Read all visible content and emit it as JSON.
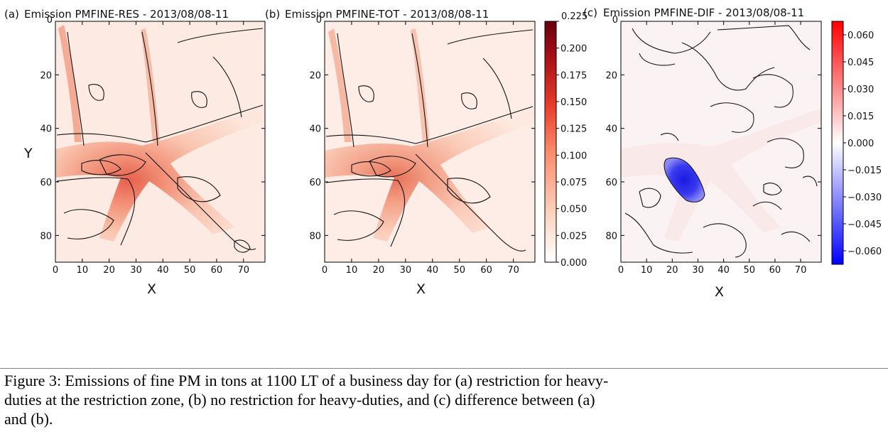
{
  "chart_data": [
    {
      "type": "heatmap",
      "panel": "(a)",
      "title": "Emission PMFINE-RES - 2013/08/08-11",
      "xlabel": "X",
      "ylabel": "Y",
      "xlim": [
        0,
        78
      ],
      "ylim": [
        0,
        90
      ],
      "y_inverted": true,
      "x_ticks": [
        0,
        10,
        20,
        30,
        40,
        50,
        60,
        70
      ],
      "y_ticks": [
        20,
        40,
        60,
        80
      ],
      "colorbar": "shared-with-b",
      "contours": true
    },
    {
      "type": "heatmap",
      "panel": "(b)",
      "title": "Emission PMFINE-TOT - 2013/08/08-11",
      "xlabel": "X",
      "xlim": [
        0,
        78
      ],
      "ylim": [
        0,
        90
      ],
      "y_inverted": true,
      "x_ticks": [
        0,
        10,
        20,
        30,
        40,
        50,
        60,
        70
      ],
      "y_ticks": [
        20,
        40,
        60,
        80
      ],
      "colorbar": {
        "ticks": [
          "0.225",
          "0.200",
          "0.175",
          "0.150",
          "0.125",
          "0.100",
          "0.075",
          "0.050",
          "0.025",
          "0.000"
        ],
        "range": [
          0.0,
          0.225
        ],
        "colormap": [
          "#ffffff",
          "#fdd3bf",
          "#fb8e6d",
          "#e73d2b",
          "#a91016",
          "#67000d"
        ]
      },
      "contours": true
    },
    {
      "type": "heatmap",
      "panel": "(c)",
      "title": "Emission PMFINE-DIF - 2013/08/08-11",
      "xlabel": "X",
      "xlim": [
        0,
        78
      ],
      "ylim": [
        0,
        90
      ],
      "y_inverted": true,
      "x_ticks": [
        0,
        10,
        20,
        30,
        40,
        50,
        60,
        70
      ],
      "y_ticks": [
        20,
        40,
        60,
        80
      ],
      "colorbar": {
        "ticks": [
          "0.060",
          "0.045",
          "0.030",
          "0.015",
          "0.000",
          "−0.015",
          "−0.030",
          "−0.045",
          "−0.060"
        ],
        "range": [
          -0.0675,
          0.0675
        ],
        "colormap": [
          "#0000ff",
          "#ffffff",
          "#ff0000"
        ]
      },
      "contours": true
    }
  ],
  "labels": {
    "tick0": "0",
    "a_prefix": "(a)",
    "b_prefix": "(b)",
    "c_prefix": "(c)",
    "a_title": "Emission PMFINE-RES - 2013/08/08-11",
    "b_title": "Emission PMFINE-TOT - 2013/08/08-11",
    "c_title": "Emission PMFINE-DIF - 2013/08/08-11",
    "x": "X",
    "y": "Y"
  },
  "caption": {
    "line1": "Figure 3: Emissions of fine PM in tons at 1100 LT of a business day for (a) restriction for heavy-",
    "line2": "duties at the restriction zone, (b) no restriction for heavy-duties, and (c) difference between (a)",
    "line3": "and (b)."
  },
  "colors": {
    "contour": "#111111",
    "frame": "#000000"
  }
}
